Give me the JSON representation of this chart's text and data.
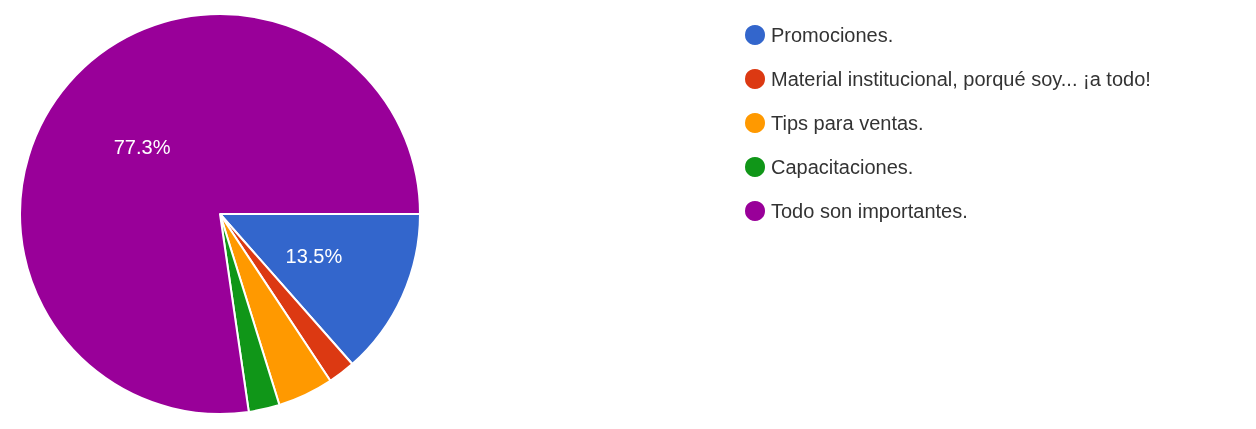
{
  "chart_data": {
    "type": "pie",
    "categories": [
      "Promociones.",
      "Material institucional, porqué soy... ¡a todo!",
      "Tips para ventas.",
      "Capacitaciones.",
      "Todo son importantes."
    ],
    "values": [
      13.5,
      2.2,
      4.5,
      2.5,
      77.3
    ],
    "colors": [
      "#3366cc",
      "#dc3912",
      "#ff9900",
      "#109618",
      "#990099"
    ],
    "value_labels": [
      "13.5%",
      null,
      null,
      null,
      "77.3%"
    ],
    "legend": "right"
  }
}
